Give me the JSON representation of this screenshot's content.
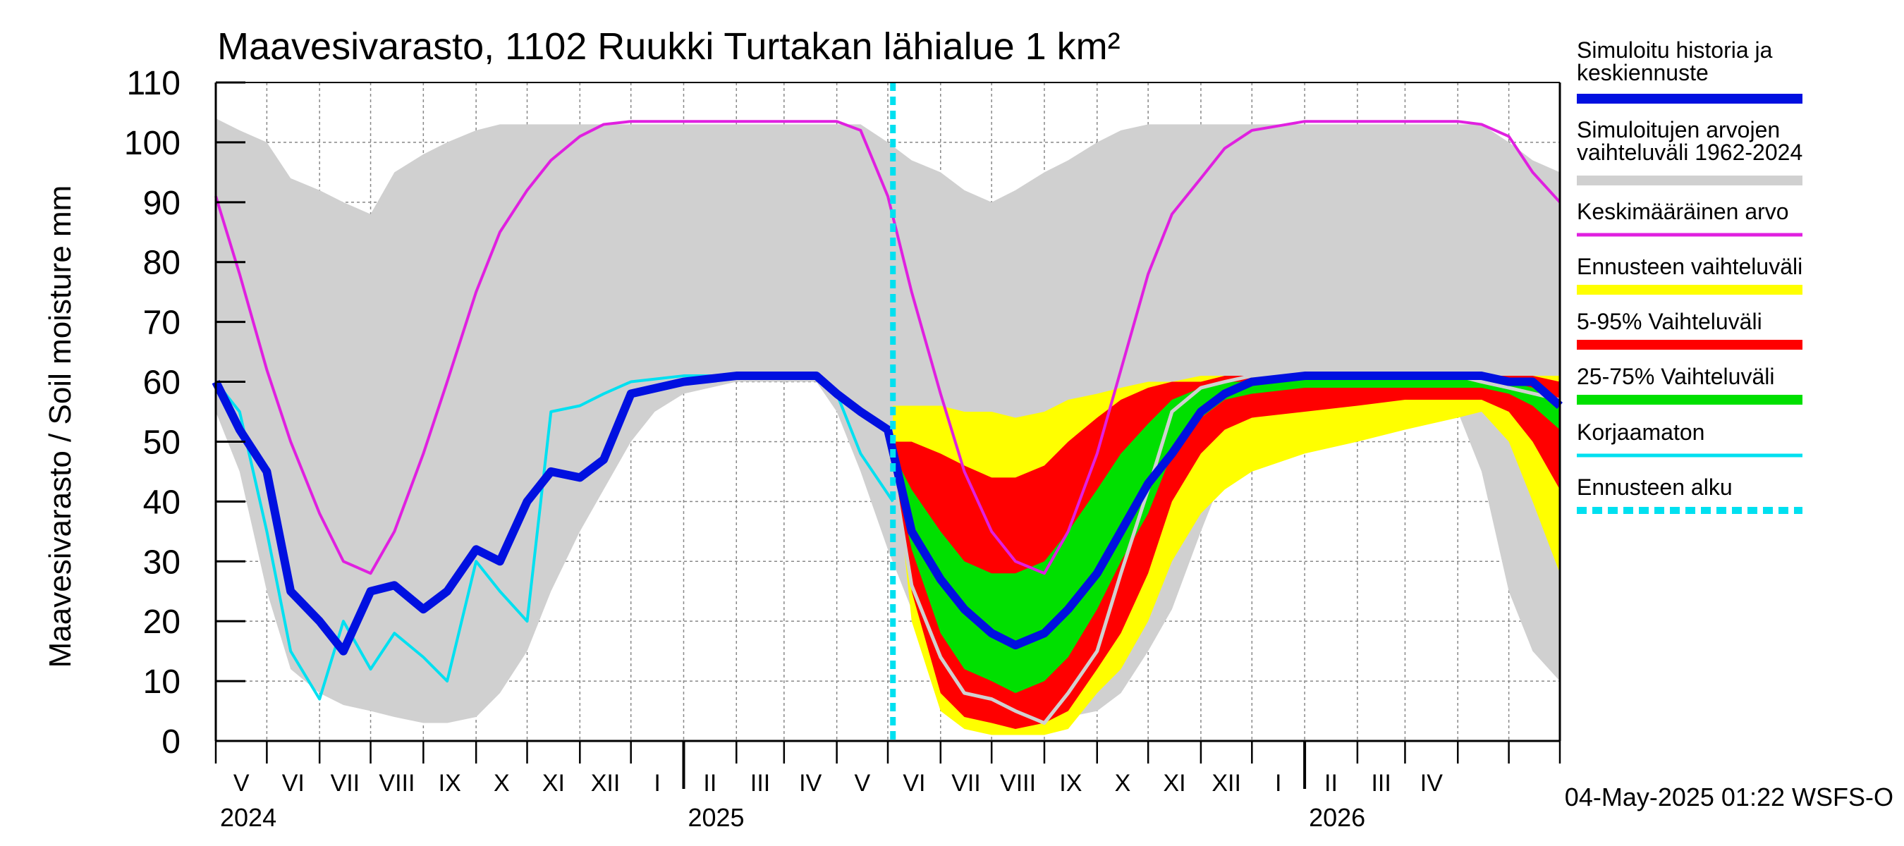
{
  "chart_data": {
    "type": "area",
    "title": "Maavesivarasto, 1102 Ruukki Turtakan lähialue 1 km²",
    "ylabel": "Maavesivarasto / Soil moisture   mm",
    "ylim": [
      0,
      110
    ],
    "yticks": [
      0,
      10,
      20,
      30,
      40,
      50,
      60,
      70,
      80,
      90,
      100,
      110
    ],
    "x_range": [
      "2024-04-01",
      "2026-05-31"
    ],
    "grid": true,
    "legend_position": "right",
    "month_labels": [
      "V",
      "VI",
      "VII",
      "VIII",
      "IX",
      "X",
      "XI",
      "XII",
      "I",
      "II",
      "III",
      "IV",
      "V",
      "VI",
      "VII",
      "VIII",
      "IX",
      "X",
      "XI",
      "XII",
      "I",
      "II",
      "III",
      "IV"
    ],
    "year_labels": [
      "2024",
      "2025",
      "2026"
    ],
    "forecast_start": "2025-05-04",
    "footer": "04-May-2025 01:22 WSFS-O",
    "legend": [
      {
        "label": "Simuloitu historia ja\nkeskiennuste",
        "color": "#0010e0",
        "style": "thick"
      },
      {
        "label": "Simuloitujen arvojen\nvaihteluväli 1962-2024",
        "color": "#d0d0d0",
        "style": "thick"
      },
      {
        "label": "Keskimääräinen arvo",
        "color": "#e020e0",
        "style": "thin"
      },
      {
        "label": "Ennusteen vaihteluväli",
        "color": "#ffff00",
        "style": "thick"
      },
      {
        "label": "5-95% Vaihteluväli",
        "color": "#ff0000",
        "style": "thick"
      },
      {
        "label": "25-75% Vaihteluväli",
        "color": "#00e000",
        "style": "thick"
      },
      {
        "label": "Korjaamaton",
        "color": "#00e0f0",
        "style": "thin"
      },
      {
        "label": "Ennusteen alku",
        "color": "#00e0f0",
        "style": "dashed"
      }
    ],
    "series": [
      {
        "name": "Simuloitujen arvojen vaihteluväli 1962-2024",
        "type": "band",
        "x": [
          "2024-04-01",
          "2024-04-15",
          "2024-05-01",
          "2024-05-15",
          "2024-06-01",
          "2024-06-15",
          "2024-07-01",
          "2024-07-15",
          "2024-08-01",
          "2024-08-15",
          "2024-09-01",
          "2024-09-15",
          "2024-10-01",
          "2024-10-15",
          "2024-11-01",
          "2024-11-15",
          "2024-12-01",
          "2024-12-15",
          "2025-01-01",
          "2025-02-01",
          "2025-03-01",
          "2025-03-20",
          "2025-04-01",
          "2025-04-15",
          "2025-05-01",
          "2025-05-15",
          "2025-06-01",
          "2025-06-15",
          "2025-07-01",
          "2025-07-15",
          "2025-08-01",
          "2025-08-15",
          "2025-09-01",
          "2025-09-15",
          "2025-10-01",
          "2025-10-15",
          "2025-11-01",
          "2025-11-15",
          "2025-12-01",
          "2025-12-15",
          "2026-01-01",
          "2026-02-01",
          "2026-03-01",
          "2026-03-20",
          "2026-04-01",
          "2026-04-15",
          "2026-05-01",
          "2026-05-15",
          "2026-05-31"
        ],
        "lower": [
          55,
          45,
          25,
          12,
          8,
          6,
          5,
          4,
          3,
          3,
          4,
          8,
          15,
          25,
          35,
          42,
          50,
          55,
          58,
          60,
          60,
          60,
          55,
          45,
          32,
          22,
          10,
          6,
          4,
          3,
          3,
          4,
          5,
          8,
          15,
          22,
          35,
          45,
          52,
          55,
          57,
          58,
          59,
          59,
          55,
          45,
          25,
          15,
          10
        ],
        "upper": [
          104,
          102,
          100,
          94,
          92,
          90,
          88,
          95,
          98,
          100,
          102,
          103,
          103,
          103,
          103,
          103,
          103,
          103,
          103,
          103,
          103,
          103,
          103,
          103,
          100,
          97,
          95,
          92,
          90,
          92,
          95,
          97,
          100,
          102,
          103,
          103,
          103,
          103,
          103,
          103,
          103,
          103,
          103,
          103,
          103,
          103,
          100,
          97,
          95
        ]
      },
      {
        "name": "Ennusteen vaihteluväli",
        "type": "band",
        "x": [
          "2025-05-04",
          "2025-05-15",
          "2025-06-01",
          "2025-06-15",
          "2025-07-01",
          "2025-07-15",
          "2025-08-01",
          "2025-08-15",
          "2025-09-01",
          "2025-09-15",
          "2025-10-01",
          "2025-10-15",
          "2025-11-01",
          "2025-11-15",
          "2025-12-01",
          "2026-01-01",
          "2026-02-01",
          "2026-03-01",
          "2026-04-01",
          "2026-04-15",
          "2026-05-01",
          "2026-05-15",
          "2026-05-31"
        ],
        "lower": [
          50,
          20,
          5,
          2,
          1,
          1,
          1,
          2,
          8,
          12,
          20,
          30,
          38,
          42,
          45,
          48,
          50,
          52,
          54,
          55,
          50,
          40,
          28
        ],
        "upper": [
          56,
          56,
          56,
          55,
          55,
          54,
          55,
          57,
          58,
          59,
          60,
          60,
          61,
          61,
          61,
          61,
          61,
          61,
          61,
          61,
          61,
          61,
          61
        ]
      },
      {
        "name": "5-95% Vaihteluväli",
        "type": "band",
        "x": [
          "2025-05-04",
          "2025-05-15",
          "2025-06-01",
          "2025-06-15",
          "2025-07-01",
          "2025-07-15",
          "2025-08-01",
          "2025-08-15",
          "2025-09-01",
          "2025-09-15",
          "2025-10-01",
          "2025-10-15",
          "2025-11-01",
          "2025-11-15",
          "2025-12-01",
          "2026-01-01",
          "2026-02-01",
          "2026-03-01",
          "2026-04-01",
          "2026-04-15",
          "2026-05-01",
          "2026-05-15",
          "2026-05-31"
        ],
        "lower": [
          48,
          25,
          8,
          4,
          3,
          2,
          3,
          5,
          12,
          18,
          28,
          40,
          48,
          52,
          54,
          55,
          56,
          57,
          57,
          57,
          55,
          50,
          42
        ],
        "upper": [
          50,
          50,
          48,
          46,
          44,
          44,
          46,
          50,
          54,
          57,
          59,
          60,
          60,
          61,
          61,
          61,
          61,
          61,
          61,
          61,
          61,
          61,
          60
        ]
      },
      {
        "name": "25-75% Vaihteluväli",
        "type": "band",
        "x": [
          "2025-05-04",
          "2025-05-15",
          "2025-06-01",
          "2025-06-15",
          "2025-07-01",
          "2025-07-15",
          "2025-08-01",
          "2025-08-15",
          "2025-09-01",
          "2025-09-15",
          "2025-10-01",
          "2025-10-15",
          "2025-11-01",
          "2025-11-15",
          "2025-12-01",
          "2026-01-01",
          "2026-02-01",
          "2026-03-01",
          "2026-04-01",
          "2026-04-15",
          "2026-05-01",
          "2026-05-15",
          "2026-05-31"
        ],
        "lower": [
          46,
          32,
          18,
          12,
          10,
          8,
          10,
          14,
          22,
          30,
          38,
          48,
          54,
          57,
          58,
          59,
          59,
          59,
          59,
          59,
          58,
          56,
          52
        ],
        "upper": [
          48,
          42,
          35,
          30,
          28,
          28,
          30,
          35,
          42,
          48,
          53,
          57,
          59,
          60,
          60,
          61,
          61,
          61,
          61,
          61,
          60,
          59,
          57
        ]
      },
      {
        "name": "Keskimääräinen arvo",
        "type": "line",
        "x": [
          "2024-04-01",
          "2024-04-15",
          "2024-05-01",
          "2024-05-15",
          "2024-06-01",
          "2024-06-15",
          "2024-07-01",
          "2024-07-15",
          "2024-08-01",
          "2024-08-15",
          "2024-09-01",
          "2024-09-15",
          "2024-10-01",
          "2024-10-15",
          "2024-11-01",
          "2024-11-15",
          "2024-12-01",
          "2025-01-01",
          "2025-02-01",
          "2025-03-01",
          "2025-04-01",
          "2025-04-15",
          "2025-05-01",
          "2025-05-15",
          "2025-06-01",
          "2025-06-15",
          "2025-07-01",
          "2025-07-15",
          "2025-08-01",
          "2025-08-15",
          "2025-09-01",
          "2025-09-15",
          "2025-10-01",
          "2025-10-15",
          "2025-11-01",
          "2025-11-15",
          "2025-12-01",
          "2026-01-01",
          "2026-02-01",
          "2026-03-01",
          "2026-04-01",
          "2026-04-15",
          "2026-05-01",
          "2026-05-15",
          "2026-05-31"
        ],
        "values": [
          91,
          78,
          62,
          50,
          38,
          30,
          28,
          35,
          48,
          60,
          75,
          85,
          92,
          97,
          101,
          103,
          103.5,
          103.5,
          103.5,
          103.5,
          103.5,
          102,
          91,
          75,
          58,
          45,
          35,
          30,
          28,
          35,
          48,
          62,
          78,
          88,
          94,
          99,
          102,
          103.5,
          103.5,
          103.5,
          103.5,
          103,
          101,
          95,
          90
        ]
      },
      {
        "name": "Korjaamaton",
        "type": "line",
        "x": [
          "2024-04-01",
          "2024-04-15",
          "2024-05-01",
          "2024-05-15",
          "2024-06-01",
          "2024-06-15",
          "2024-07-01",
          "2024-07-15",
          "2024-08-01",
          "2024-08-15",
          "2024-09-01",
          "2024-09-15",
          "2024-10-01",
          "2024-10-15",
          "2024-11-01",
          "2024-11-15",
          "2024-12-01",
          "2025-01-01",
          "2025-02-01",
          "2025-03-01",
          "2025-03-20",
          "2025-04-01",
          "2025-04-15",
          "2025-05-04"
        ],
        "values": [
          60,
          55,
          35,
          15,
          7,
          20,
          12,
          18,
          14,
          10,
          30,
          25,
          20,
          55,
          56,
          58,
          60,
          61,
          61,
          61,
          61,
          58,
          48,
          40
        ]
      },
      {
        "name": "Korjaamaton (ennuste)",
        "type": "line",
        "x": [
          "2025-05-04",
          "2025-05-15",
          "2025-06-01",
          "2025-06-15",
          "2025-07-01",
          "2025-07-15",
          "2025-08-01",
          "2025-08-15",
          "2025-09-01",
          "2025-09-15",
          "2025-10-01",
          "2025-10-15",
          "2025-11-01",
          "2025-11-15",
          "2025-12-01",
          "2026-01-01",
          "2026-02-01",
          "2026-03-01",
          "2026-04-01",
          "2026-04-15",
          "2026-05-01",
          "2026-05-31"
        ],
        "values": [
          45,
          26,
          14,
          8,
          7,
          5,
          3,
          8,
          15,
          28,
          42,
          55,
          59,
          60,
          61,
          61,
          61,
          61,
          61,
          60,
          59,
          57
        ]
      },
      {
        "name": "Simuloitu historia ja keskiennuste",
        "type": "line",
        "x": [
          "2024-04-01",
          "2024-04-15",
          "2024-05-01",
          "2024-05-15",
          "2024-06-01",
          "2024-06-15",
          "2024-07-01",
          "2024-07-15",
          "2024-08-01",
          "2024-08-15",
          "2024-09-01",
          "2024-09-15",
          "2024-10-01",
          "2024-10-15",
          "2024-11-01",
          "2024-11-15",
          "2024-12-01",
          "2025-01-01",
          "2025-02-01",
          "2025-03-01",
          "2025-03-20",
          "2025-04-01",
          "2025-04-15",
          "2025-05-01",
          "2025-05-15",
          "2025-06-01",
          "2025-06-15",
          "2025-07-01",
          "2025-07-15",
          "2025-08-01",
          "2025-08-15",
          "2025-09-01",
          "2025-09-15",
          "2025-10-01",
          "2025-10-15",
          "2025-11-01",
          "2025-11-15",
          "2025-12-01",
          "2026-01-01",
          "2026-02-01",
          "2026-03-01",
          "2026-04-01",
          "2026-04-15",
          "2026-05-01",
          "2026-05-15",
          "2026-05-31"
        ],
        "values": [
          60,
          52,
          45,
          25,
          20,
          15,
          25,
          26,
          22,
          25,
          32,
          30,
          40,
          45,
          44,
          47,
          58,
          60,
          61,
          61,
          61,
          58,
          55,
          52,
          35,
          27,
          22,
          18,
          16,
          18,
          22,
          28,
          35,
          43,
          48,
          55,
          58,
          60,
          61,
          61,
          61,
          61,
          61,
          60,
          60,
          56
        ]
      }
    ]
  }
}
